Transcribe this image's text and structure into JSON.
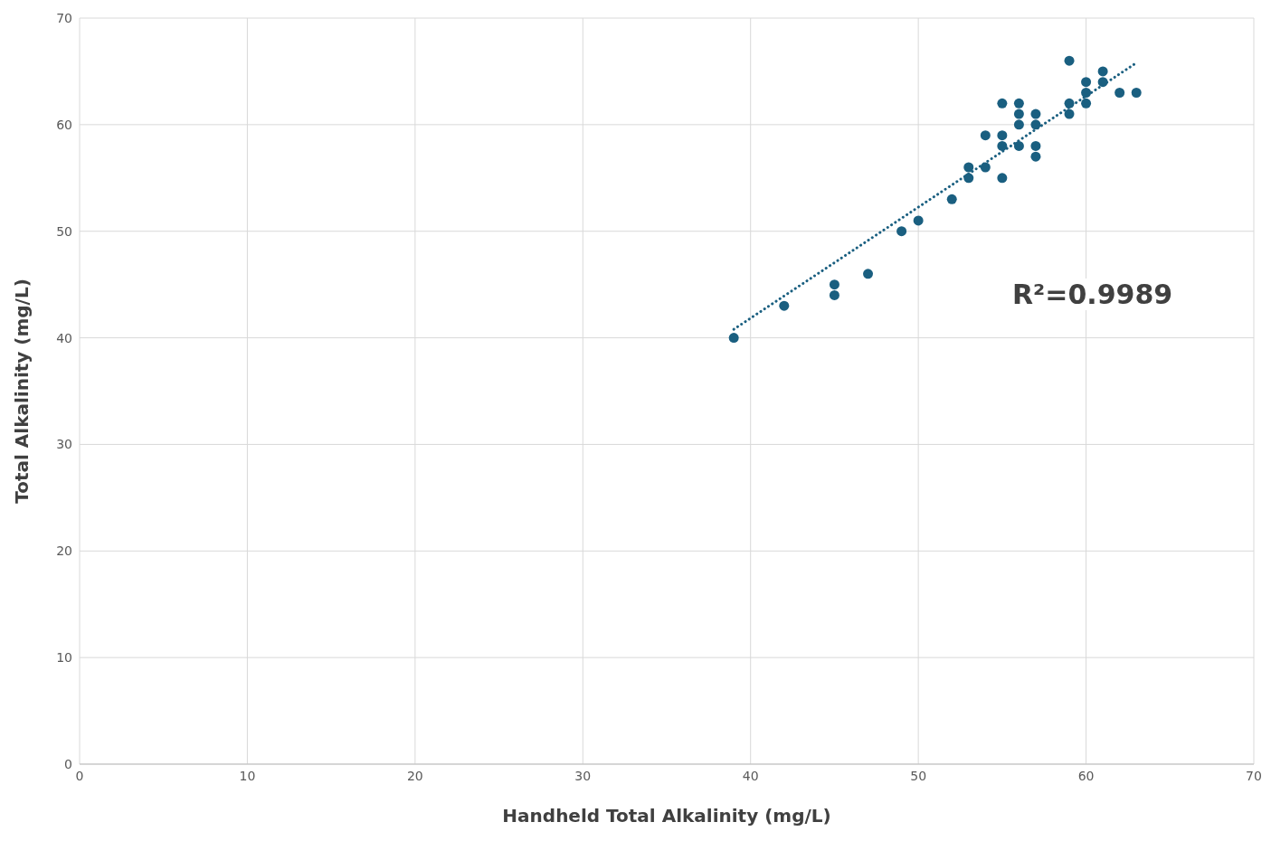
{
  "chart_data": {
    "type": "scatter",
    "xlabel": "Handheld Total Alkalinity (mg/L)",
    "ylabel": "Total Alkalinity (mg/L)",
    "annotations": [
      "R²=0.9989"
    ],
    "xlim": [
      0,
      70
    ],
    "xticks": [
      0,
      10,
      20,
      30,
      40,
      50,
      60,
      70
    ],
    "ylim": [
      0,
      70
    ],
    "yticks": [
      0,
      10,
      20,
      30,
      40,
      50,
      60,
      70
    ],
    "grid": true,
    "legend": false,
    "marker": "circle",
    "series": [
      {
        "color": "#1a5f80",
        "x": [
          39,
          42,
          45,
          45,
          47,
          49,
          50,
          52,
          53,
          53,
          54,
          54,
          55,
          55,
          55,
          55,
          56,
          56,
          56,
          56,
          57,
          57,
          57,
          57,
          59,
          59,
          59,
          60,
          60,
          60,
          61,
          61,
          62,
          63
        ],
        "values": [
          40,
          43,
          45,
          44,
          46,
          50,
          51,
          53,
          56,
          55,
          59,
          56,
          62,
          59,
          58,
          55,
          62,
          61,
          60,
          58,
          61,
          60,
          58,
          57,
          66,
          62,
          61,
          64,
          63,
          62,
          65,
          64,
          63,
          63
        ]
      },
      {
        "type": "line",
        "color": "#1a5f80",
        "line_style": "dotted",
        "marker": "none",
        "x": [
          39,
          63
        ],
        "values": [
          40.8,
          65.8
        ]
      }
    ]
  }
}
